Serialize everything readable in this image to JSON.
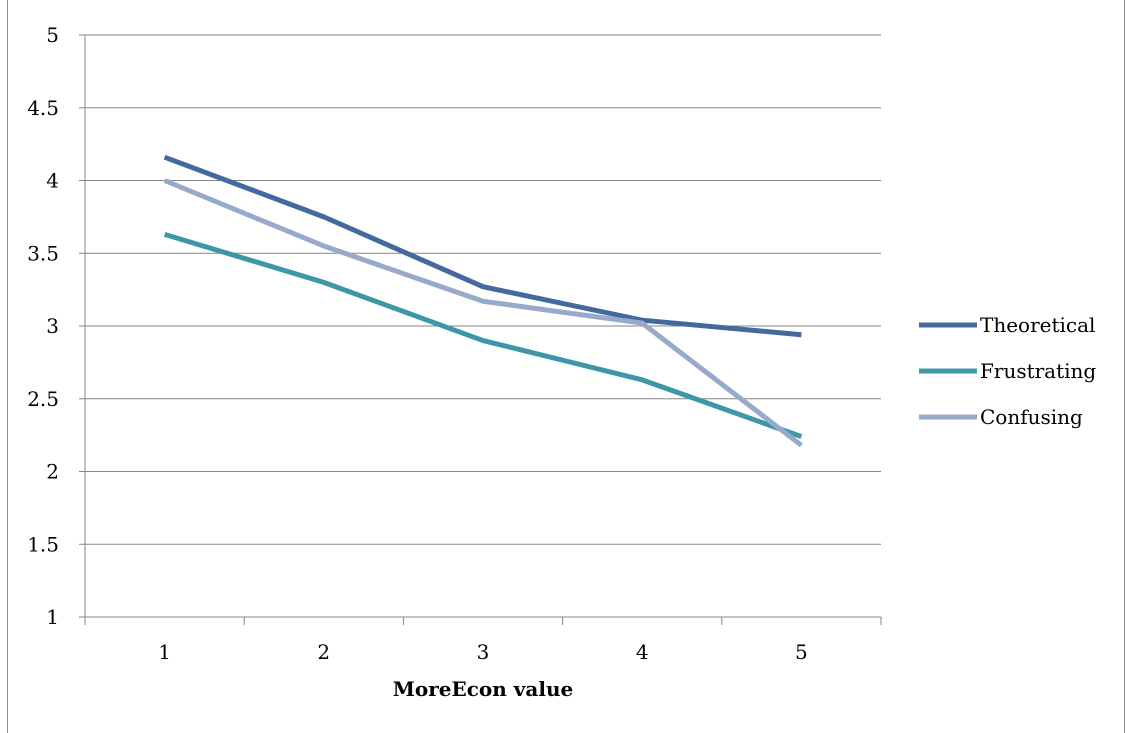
{
  "chart_data": {
    "type": "line",
    "title": "",
    "xlabel": "MoreEcon value",
    "ylabel": "",
    "categories": [
      "1",
      "2",
      "3",
      "4",
      "5"
    ],
    "ylim": [
      1,
      5
    ],
    "yticks": [
      "1",
      "1.5",
      "2",
      "2.5",
      "3",
      "3.5",
      "4",
      "4.5",
      "5"
    ],
    "grid": true,
    "legend_position": "right",
    "series": [
      {
        "name": "Theoretical",
        "color": "#44699E",
        "values": [
          4.16,
          3.75,
          3.27,
          3.04,
          2.94
        ]
      },
      {
        "name": "Frustrating",
        "color": "#3E97A6",
        "values": [
          3.63,
          3.3,
          2.9,
          2.63,
          2.24
        ]
      },
      {
        "name": "Confusing",
        "color": "#97AACB",
        "values": [
          4.0,
          3.55,
          3.17,
          3.02,
          2.18
        ]
      }
    ]
  }
}
